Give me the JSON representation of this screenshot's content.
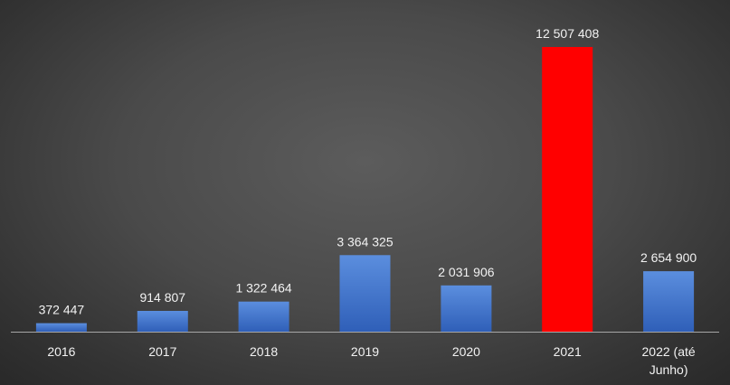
{
  "chart_data": {
    "type": "bar",
    "title": "",
    "xlabel": "",
    "ylabel": "",
    "categories": [
      "2016",
      "2017",
      "2018",
      "2019",
      "2020",
      "2021",
      "2022 (até Junho)"
    ],
    "values": [
      372447,
      914807,
      1322464,
      3364325,
      2031906,
      12507408,
      2654900
    ],
    "value_labels": [
      "372 447",
      "914 807",
      "1 322 464",
      "3 364 325",
      "2 031 906",
      "12 507 408",
      "2 654 900"
    ],
    "ylim": [
      0,
      12507408
    ],
    "y_axis_visible": false,
    "grid": false,
    "legend": "none",
    "highlighted_category": "2021",
    "colors": {
      "bar": "#4472c4",
      "bar_highlight": "#ff0000",
      "axis_line": "#a6a6a6",
      "text": "#f2f2f2",
      "background": "#404040"
    }
  }
}
